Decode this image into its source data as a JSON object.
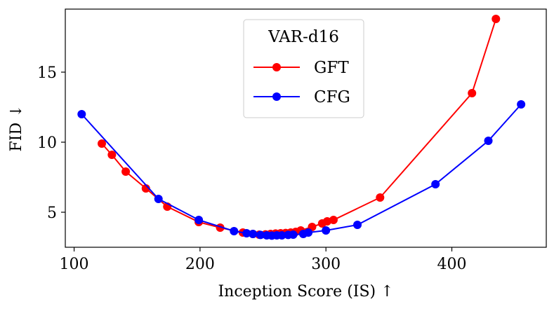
{
  "chart_data": {
    "type": "line",
    "title": "",
    "xlabel": "Inception Score (IS) ↑",
    "ylabel": "FID ↓",
    "xlim": [
      93,
      475
    ],
    "ylim": [
      2.5,
      19.5
    ],
    "x_ticks": [
      100,
      200,
      300,
      400
    ],
    "y_ticks": [
      5,
      10,
      15
    ],
    "grid": false,
    "legend": {
      "title": "VAR-d16",
      "placement": "top-center"
    },
    "series": [
      {
        "name": "GFT",
        "color": "#ff0000",
        "x": [
          122,
          130,
          141,
          157,
          174,
          199,
          216,
          234,
          242,
          247,
          252,
          256,
          260,
          264,
          268,
          272,
          276,
          280,
          289,
          297,
          301,
          306,
          343,
          416,
          435
        ],
        "y": [
          9.9,
          9.1,
          7.9,
          6.7,
          5.4,
          4.3,
          3.9,
          3.55,
          3.45,
          3.4,
          3.42,
          3.45,
          3.48,
          3.5,
          3.52,
          3.55,
          3.6,
          3.7,
          3.95,
          4.2,
          4.35,
          4.45,
          6.05,
          13.5,
          18.8
        ]
      },
      {
        "name": "CFG",
        "color": "#0000ff",
        "x": [
          106,
          167,
          199,
          227,
          237,
          242,
          248,
          253,
          257,
          261,
          265,
          270,
          274,
          282,
          286,
          300,
          325,
          387,
          429,
          455
        ],
        "y": [
          12.0,
          5.95,
          4.45,
          3.65,
          3.5,
          3.45,
          3.38,
          3.35,
          3.33,
          3.35,
          3.35,
          3.38,
          3.4,
          3.45,
          3.55,
          3.7,
          4.1,
          7.0,
          10.1,
          12.7
        ]
      }
    ]
  }
}
